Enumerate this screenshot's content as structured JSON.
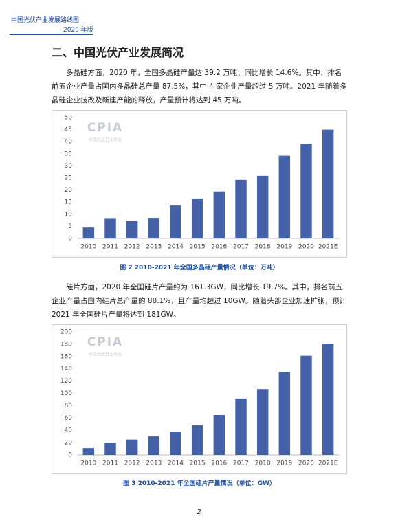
{
  "header": {
    "title": "中国光伏产业发展路线图",
    "edition": "2020 年版"
  },
  "section_title": "二、中国光伏产业发展简况",
  "paragraphs": [
    "多晶硅方面，2020 年，全国多晶硅产量达 39.2 万吨，同比增长 14.6%。其中，排名前五企业产量占国内多晶硅总产量 87.5%，其中 4 家企业产量超过 5 万吨。2021 年随着多晶硅企业技改及新建产能的释放，产量预计将达到 45 万吨。",
    "硅片方面，2020 年全国硅片产量约为 161.3GW，同比增长 19.7%。其中，排名前五企业产量占国内硅片总产量的 88.1%，且产量均超过 10GW。随着头部企业加速扩张，预计 2021 年全国硅片产量将达到 181GW。"
  ],
  "watermark": {
    "logo": "CPIA",
    "org": "中国光伏行业协会"
  },
  "page_number": "2",
  "chart_data": [
    {
      "type": "bar",
      "caption": "图 2   2010-2021 年全国多晶硅产量情况（单位：万吨）",
      "categories": [
        "2010",
        "2011",
        "2012",
        "2013",
        "2014",
        "2015",
        "2016",
        "2017",
        "2018",
        "2019",
        "2020",
        "2021E"
      ],
      "values": [
        4.5,
        8.4,
        7.1,
        8.5,
        13.6,
        16.5,
        19.4,
        24.2,
        25.9,
        34.2,
        39.2,
        45
      ],
      "color": "#4562a8",
      "ylim": [
        0,
        50
      ],
      "yticks": [
        0,
        5,
        10,
        15,
        20,
        25,
        30,
        35,
        40,
        45,
        50
      ],
      "grid": false
    },
    {
      "type": "bar",
      "caption": "图 3   2010-2021 年全国硅片产量情况（单位：GW）",
      "categories": [
        "2010",
        "2011",
        "2012",
        "2013",
        "2014",
        "2015",
        "2016",
        "2017",
        "2018",
        "2019",
        "2020",
        "2021E"
      ],
      "values": [
        11,
        20,
        25,
        30,
        38,
        48,
        64.8,
        91.7,
        107,
        134.7,
        161.3,
        181
      ],
      "color": "#4562a8",
      "ylim": [
        0,
        200
      ],
      "yticks": [
        0,
        20,
        40,
        60,
        80,
        100,
        120,
        140,
        160,
        180,
        200
      ],
      "grid": false
    }
  ]
}
